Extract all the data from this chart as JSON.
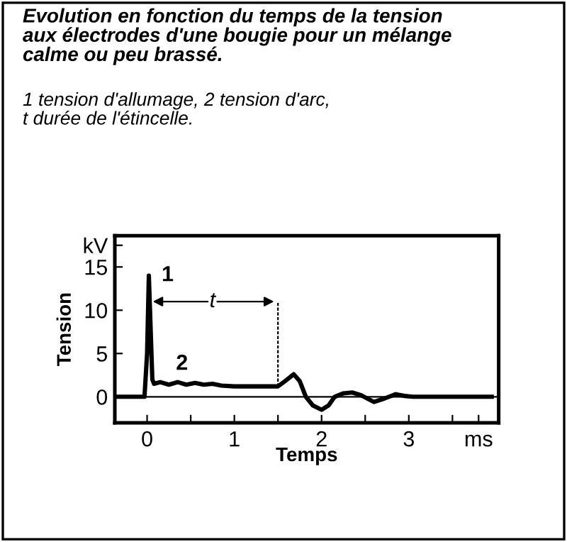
{
  "chart_data": {
    "type": "line",
    "title": "Evolution en fonction du temps de la tension\naux électrodes d'une bougie pour un mélange\ncalme ou peu brassé.",
    "subtitle": "1 tension d'allumage, 2 tension d'arc,\nt durée de l'étincelle.",
    "xlabel": "Temps",
    "ylabel": "Tension",
    "x": [
      -0.37,
      -0.03,
      0.0,
      0.02,
      0.04,
      0.06,
      0.08,
      0.15,
      0.25,
      0.35,
      0.45,
      0.55,
      0.65,
      0.75,
      0.85,
      1.0,
      1.2,
      1.4,
      1.5,
      1.58,
      1.68,
      1.75,
      1.82,
      1.9,
      2.0,
      2.08,
      2.15,
      2.25,
      2.35,
      2.45,
      2.6,
      2.72,
      2.85,
      2.95,
      3.05,
      3.95
    ],
    "series": [
      {
        "color": "#000000",
        "values": [
          0,
          0,
          5,
          14,
          8,
          2,
          1.5,
          1.7,
          1.4,
          1.7,
          1.4,
          1.6,
          1.4,
          1.5,
          1.3,
          1.2,
          1.2,
          1.2,
          1.2,
          1.8,
          2.6,
          1.8,
          0,
          -1.0,
          -1.5,
          -1.0,
          0,
          0.4,
          0.5,
          0.2,
          -0.6,
          -0.2,
          0.3,
          0.1,
          0,
          0
        ]
      }
    ],
    "xlim": [
      -0.37,
      4.03
    ],
    "ylim": [
      -3.0,
      18.6
    ],
    "xticks": [
      0,
      {
        "value": 0.5,
        "label": null
      },
      1,
      {
        "value": 1.5,
        "label": null
      },
      2,
      {
        "value": 2.5,
        "label": null
      },
      3,
      {
        "value": 3.5,
        "label": null
      },
      {
        "value": 3.8,
        "label": "ms"
      }
    ],
    "yticks": [
      0,
      5,
      10,
      15,
      {
        "value": 17.5,
        "label": "kV"
      }
    ],
    "ref_lines": [
      {
        "axis": "y",
        "value": 0,
        "color": "#000000"
      }
    ],
    "annotations": [
      {
        "text": "1",
        "x": 0.1,
        "y": 14
      },
      {
        "text": "2",
        "x": 0.4,
        "y": 1.5
      },
      {
        "text": "t",
        "x": 0.75,
        "y": 11
      }
    ],
    "grid": false,
    "legend": false,
    "marker": "none",
    "line_style": "solid"
  }
}
